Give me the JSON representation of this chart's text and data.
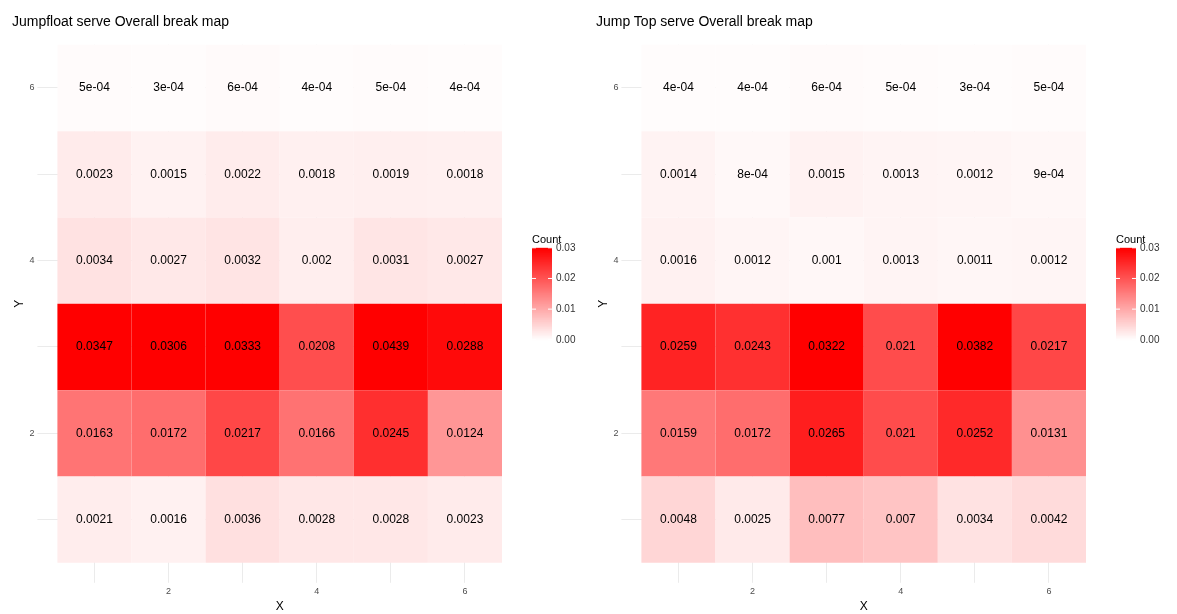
{
  "chart_data": [
    {
      "type": "heatmap",
      "title": "Jumpfloat serve Overall break map",
      "xlabel": "X",
      "ylabel": "Y",
      "clabel": "Count",
      "categories": [
        null,
        "2",
        null,
        "4",
        null,
        "6"
      ],
      "y_categories": [
        "6",
        null,
        "4",
        null,
        "2",
        null
      ],
      "cells": [
        [
          0.0005,
          0.0003,
          0.0006,
          0.0004,
          0.0005,
          0.0004
        ],
        [
          0.0023,
          0.0015,
          0.0022,
          0.0018,
          0.0019,
          0.0018
        ],
        [
          0.0034,
          0.0027,
          0.0032,
          0.002,
          0.0031,
          0.0027
        ],
        [
          0.0347,
          0.0306,
          0.0333,
          0.0208,
          0.0439,
          0.0288
        ],
        [
          0.0163,
          0.0172,
          0.0217,
          0.0166,
          0.0245,
          0.0124
        ],
        [
          0.0021,
          0.0016,
          0.0036,
          0.0028,
          0.0028,
          0.0023
        ]
      ],
      "cell_labels": [
        [
          "5e-04",
          "3e-04",
          "6e-04",
          "4e-04",
          "5e-04",
          "4e-04"
        ],
        [
          "0.0023",
          "0.0015",
          "0.0022",
          "0.0018",
          "0.0019",
          "0.0018"
        ],
        [
          "0.0034",
          "0.0027",
          "0.0032",
          "0.002",
          "0.0031",
          "0.0027"
        ],
        [
          "0.0347",
          "0.0306",
          "0.0333",
          "0.0208",
          "0.0439",
          "0.0288"
        ],
        [
          "0.0163",
          "0.0172",
          "0.0217",
          "0.0166",
          "0.0245",
          "0.0124"
        ],
        [
          "0.0021",
          "0.0016",
          "0.0036",
          "0.0028",
          "0.0028",
          "0.0023"
        ]
      ],
      "colors": [
        "#ffffff",
        "#ff0000"
      ],
      "clim": [
        0,
        0.03
      ],
      "cticks": [
        {
          "value": 0,
          "label": "0.00"
        },
        {
          "value": 0.01,
          "label": "0.01"
        },
        {
          "value": 0.02,
          "label": "0.02"
        },
        {
          "value": 0.03,
          "label": "0.03"
        }
      ],
      "grid": true
    },
    {
      "type": "heatmap",
      "title": "Jump Top serve Overall break map",
      "xlabel": "X",
      "ylabel": "Y",
      "clabel": "Count",
      "categories": [
        null,
        "2",
        null,
        "4",
        null,
        "6"
      ],
      "y_categories": [
        "6",
        null,
        "4",
        null,
        "2",
        null
      ],
      "cells": [
        [
          0.0004,
          0.0004,
          0.0006,
          0.0005,
          0.0003,
          0.0005
        ],
        [
          0.0014,
          0.0008,
          0.0015,
          0.0013,
          0.0012,
          0.0009
        ],
        [
          0.0016,
          0.0012,
          0.001,
          0.0013,
          0.0011,
          0.0012
        ],
        [
          0.0259,
          0.0243,
          0.0322,
          0.021,
          0.0382,
          0.0217
        ],
        [
          0.0159,
          0.0172,
          0.0265,
          0.021,
          0.0252,
          0.0131
        ],
        [
          0.0048,
          0.0025,
          0.0077,
          0.007,
          0.0034,
          0.0042
        ]
      ],
      "cell_labels": [
        [
          "4e-04",
          "4e-04",
          "6e-04",
          "5e-04",
          "3e-04",
          "5e-04"
        ],
        [
          "0.0014",
          "8e-04",
          "0.0015",
          "0.0013",
          "0.0012",
          "9e-04"
        ],
        [
          "0.0016",
          "0.0012",
          "0.001",
          "0.0013",
          "0.0011",
          "0.0012"
        ],
        [
          "0.0259",
          "0.0243",
          "0.0322",
          "0.021",
          "0.0382",
          "0.0217"
        ],
        [
          "0.0159",
          "0.0172",
          "0.0265",
          "0.021",
          "0.0252",
          "0.0131"
        ],
        [
          "0.0048",
          "0.0025",
          "0.0077",
          "0.007",
          "0.0034",
          "0.0042"
        ]
      ],
      "colors": [
        "#ffffff",
        "#ff0000"
      ],
      "clim": [
        0,
        0.03
      ],
      "cticks": [
        {
          "value": 0,
          "label": "0.00"
        },
        {
          "value": 0.01,
          "label": "0.01"
        },
        {
          "value": 0.02,
          "label": "0.02"
        },
        {
          "value": 0.03,
          "label": "0.03"
        }
      ],
      "grid": true
    }
  ]
}
